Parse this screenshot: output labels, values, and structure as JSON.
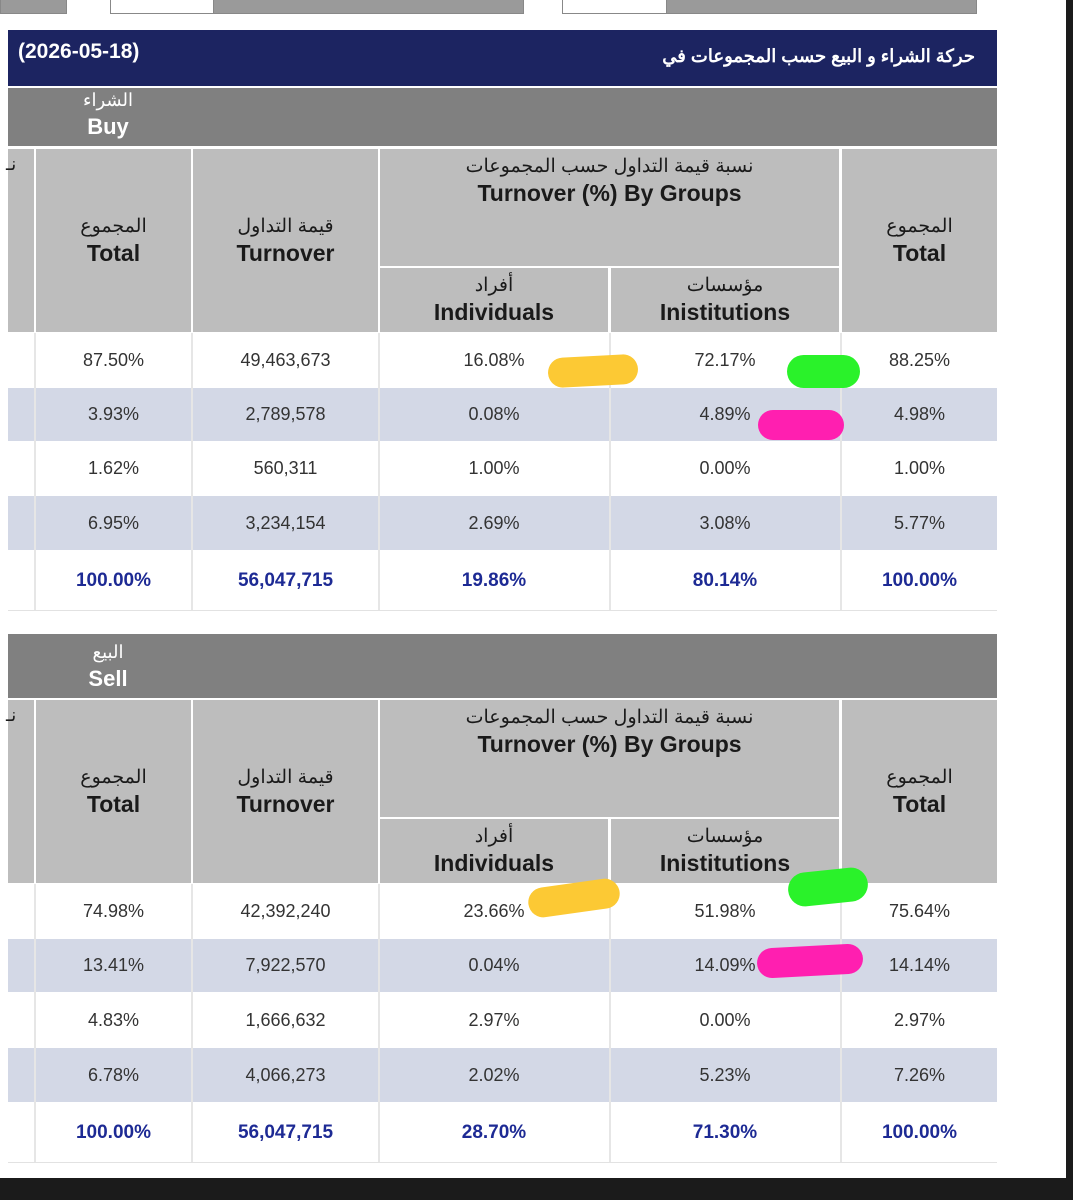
{
  "title": {
    "date": "(2026-05-18)",
    "text": "حركة الشراء و البيع حسب المجموعات في"
  },
  "headers": {
    "total_ar": "المجموع",
    "total_en": "Total",
    "turnover_ar": "قيمة التداول",
    "turnover_en": "Turnover",
    "groups_ar": "نسبة قيمة التداول حسب المجموعات",
    "groups_en": "Turnover (%) By Groups",
    "individuals_ar": "أفراد",
    "individuals_en": "Individuals",
    "institutions_ar": "مؤسسات",
    "institutions_en": "Inistitutions",
    "cut_glyph": "نـ"
  },
  "buy": {
    "label_ar": "الشراء",
    "label_en": "Buy",
    "rows": [
      {
        "total": "87.50%",
        "turnover": "49,463,673",
        "individuals": "16.08%",
        "institutions": "72.17%",
        "group_total": "88.25%"
      },
      {
        "total": "3.93%",
        "turnover": "2,789,578",
        "individuals": "0.08%",
        "institutions": "4.89%",
        "group_total": "4.98%"
      },
      {
        "total": "1.62%",
        "turnover": "560,311",
        "individuals": "1.00%",
        "institutions": "0.00%",
        "group_total": "1.00%"
      },
      {
        "total": "6.95%",
        "turnover": "3,234,154",
        "individuals": "2.69%",
        "institutions": "3.08%",
        "group_total": "5.77%"
      }
    ],
    "totals": {
      "total": "100.00%",
      "turnover": "56,047,715",
      "individuals": "19.86%",
      "institutions": "80.14%",
      "group_total": "100.00%"
    }
  },
  "sell": {
    "label_ar": "البيع",
    "label_en": "Sell",
    "rows": [
      {
        "total": "74.98%",
        "turnover": "42,392,240",
        "individuals": "23.66%",
        "institutions": "51.98%",
        "group_total": "75.64%"
      },
      {
        "total": "13.41%",
        "turnover": "7,922,570",
        "individuals": "0.04%",
        "institutions": "14.09%",
        "group_total": "14.14%"
      },
      {
        "total": "4.83%",
        "turnover": "1,666,632",
        "individuals": "2.97%",
        "institutions": "0.00%",
        "group_total": "2.97%"
      },
      {
        "total": "6.78%",
        "turnover": "4,066,273",
        "individuals": "2.02%",
        "institutions": "5.23%",
        "group_total": "7.26%"
      }
    ],
    "totals": {
      "total": "100.00%",
      "turnover": "56,047,715",
      "individuals": "28.70%",
      "institutions": "71.30%",
      "group_total": "100.00%"
    }
  },
  "colors": {
    "title_bg": "#1c2461",
    "section_bg": "#808080",
    "header_bg": "#bdbdbd",
    "alt_row": "#d3d8e6",
    "totals_text": "#1d2a94",
    "highlight_yellow": "#fcc934",
    "highlight_green": "#2af22a",
    "highlight_pink": "#ff1fb0"
  }
}
